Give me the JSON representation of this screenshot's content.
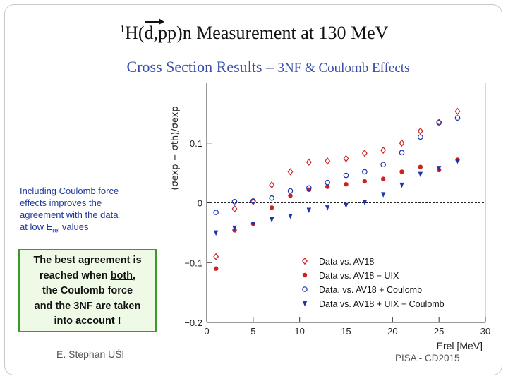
{
  "header": {
    "sup": "1",
    "pre": "H(",
    "d": "d",
    "post": ",pp)n Measurement at 130 MeV",
    "subtitle_main": "Cross Section Results –",
    "subtitle_rest": "3NF & Coulomb Effects"
  },
  "note1": {
    "line1": "Including Coulomb force",
    "line2": "effects improves the",
    "line3": "agreement with the data",
    "line4_pre": "at low E",
    "line4_sub": "rel",
    "line4_post": " values"
  },
  "note2": {
    "line1": "The best agreement is",
    "line2_pre": "reached when ",
    "line2_u": "both",
    "line2_post": ",",
    "line3": "the Coulomb force",
    "line4_u": "and",
    "line4_post": " the 3NF are taken",
    "line5": "into account !"
  },
  "footer": {
    "author": "E. Stephan UŚl",
    "conference": "PISA -  CD2015"
  },
  "colors": {
    "av18": "#cc2222",
    "coulomb": "#2233aa"
  },
  "chart_data": {
    "type": "scatter",
    "ylabel": "(σexp − σth)/σexp",
    "xlabel": "Erel [MeV]",
    "xlim": [
      0,
      30
    ],
    "ylim": [
      -0.2,
      0.2
    ],
    "xticks": [
      0,
      5,
      10,
      15,
      20,
      25,
      30
    ],
    "yticks": [
      {
        "value": 0.1,
        "label": "0.1"
      },
      {
        "value": 0,
        "label": "0"
      },
      {
        "value": -0.1,
        "label": "−0.1"
      },
      {
        "value": -0.2,
        "label": "−0.2"
      }
    ],
    "reference_line": 0,
    "series": [
      {
        "name": "Data vs. AV18",
        "marker": "diamond-open",
        "color": "#cc2222",
        "x": [
          1,
          3,
          5,
          7,
          9,
          11,
          13,
          15,
          17,
          19,
          21,
          23,
          25,
          27
        ],
        "y": [
          -0.09,
          -0.01,
          0.002,
          0.03,
          0.052,
          0.068,
          0.07,
          0.074,
          0.083,
          0.088,
          0.1,
          0.12,
          0.135,
          0.153
        ]
      },
      {
        "name": "Data vs. AV18 − UIX",
        "marker": "circle-filled",
        "color": "#cc2222",
        "x": [
          1,
          3,
          5,
          7,
          9,
          11,
          13,
          15,
          17,
          19,
          21,
          23,
          25,
          27
        ],
        "y": [
          -0.11,
          -0.046,
          -0.035,
          -0.008,
          0.012,
          0.022,
          0.027,
          0.031,
          0.036,
          0.04,
          0.052,
          0.06,
          0.055,
          0.072
        ]
      },
      {
        "name": "Data, vs. AV18 + Coulomb",
        "marker": "circle-open",
        "color": "#2233aa",
        "x": [
          1,
          3,
          5,
          7,
          9,
          11,
          13,
          15,
          17,
          19,
          21,
          23,
          25,
          27
        ],
        "y": [
          -0.016,
          0.002,
          0.003,
          0.008,
          0.02,
          0.025,
          0.034,
          0.046,
          0.052,
          0.064,
          0.084,
          0.11,
          0.134,
          0.142
        ]
      },
      {
        "name": "Data vs. AV18 + UIX + Coulomb",
        "marker": "triangle-down-filled",
        "color": "#2233aa",
        "x": [
          1,
          3,
          5,
          7,
          9,
          11,
          13,
          15,
          17,
          19,
          21,
          23,
          25,
          27
        ],
        "y": [
          -0.05,
          -0.042,
          -0.035,
          -0.028,
          -0.022,
          -0.012,
          -0.008,
          -0.004,
          0.001,
          0.014,
          0.03,
          0.048,
          0.058,
          0.07
        ]
      }
    ]
  }
}
